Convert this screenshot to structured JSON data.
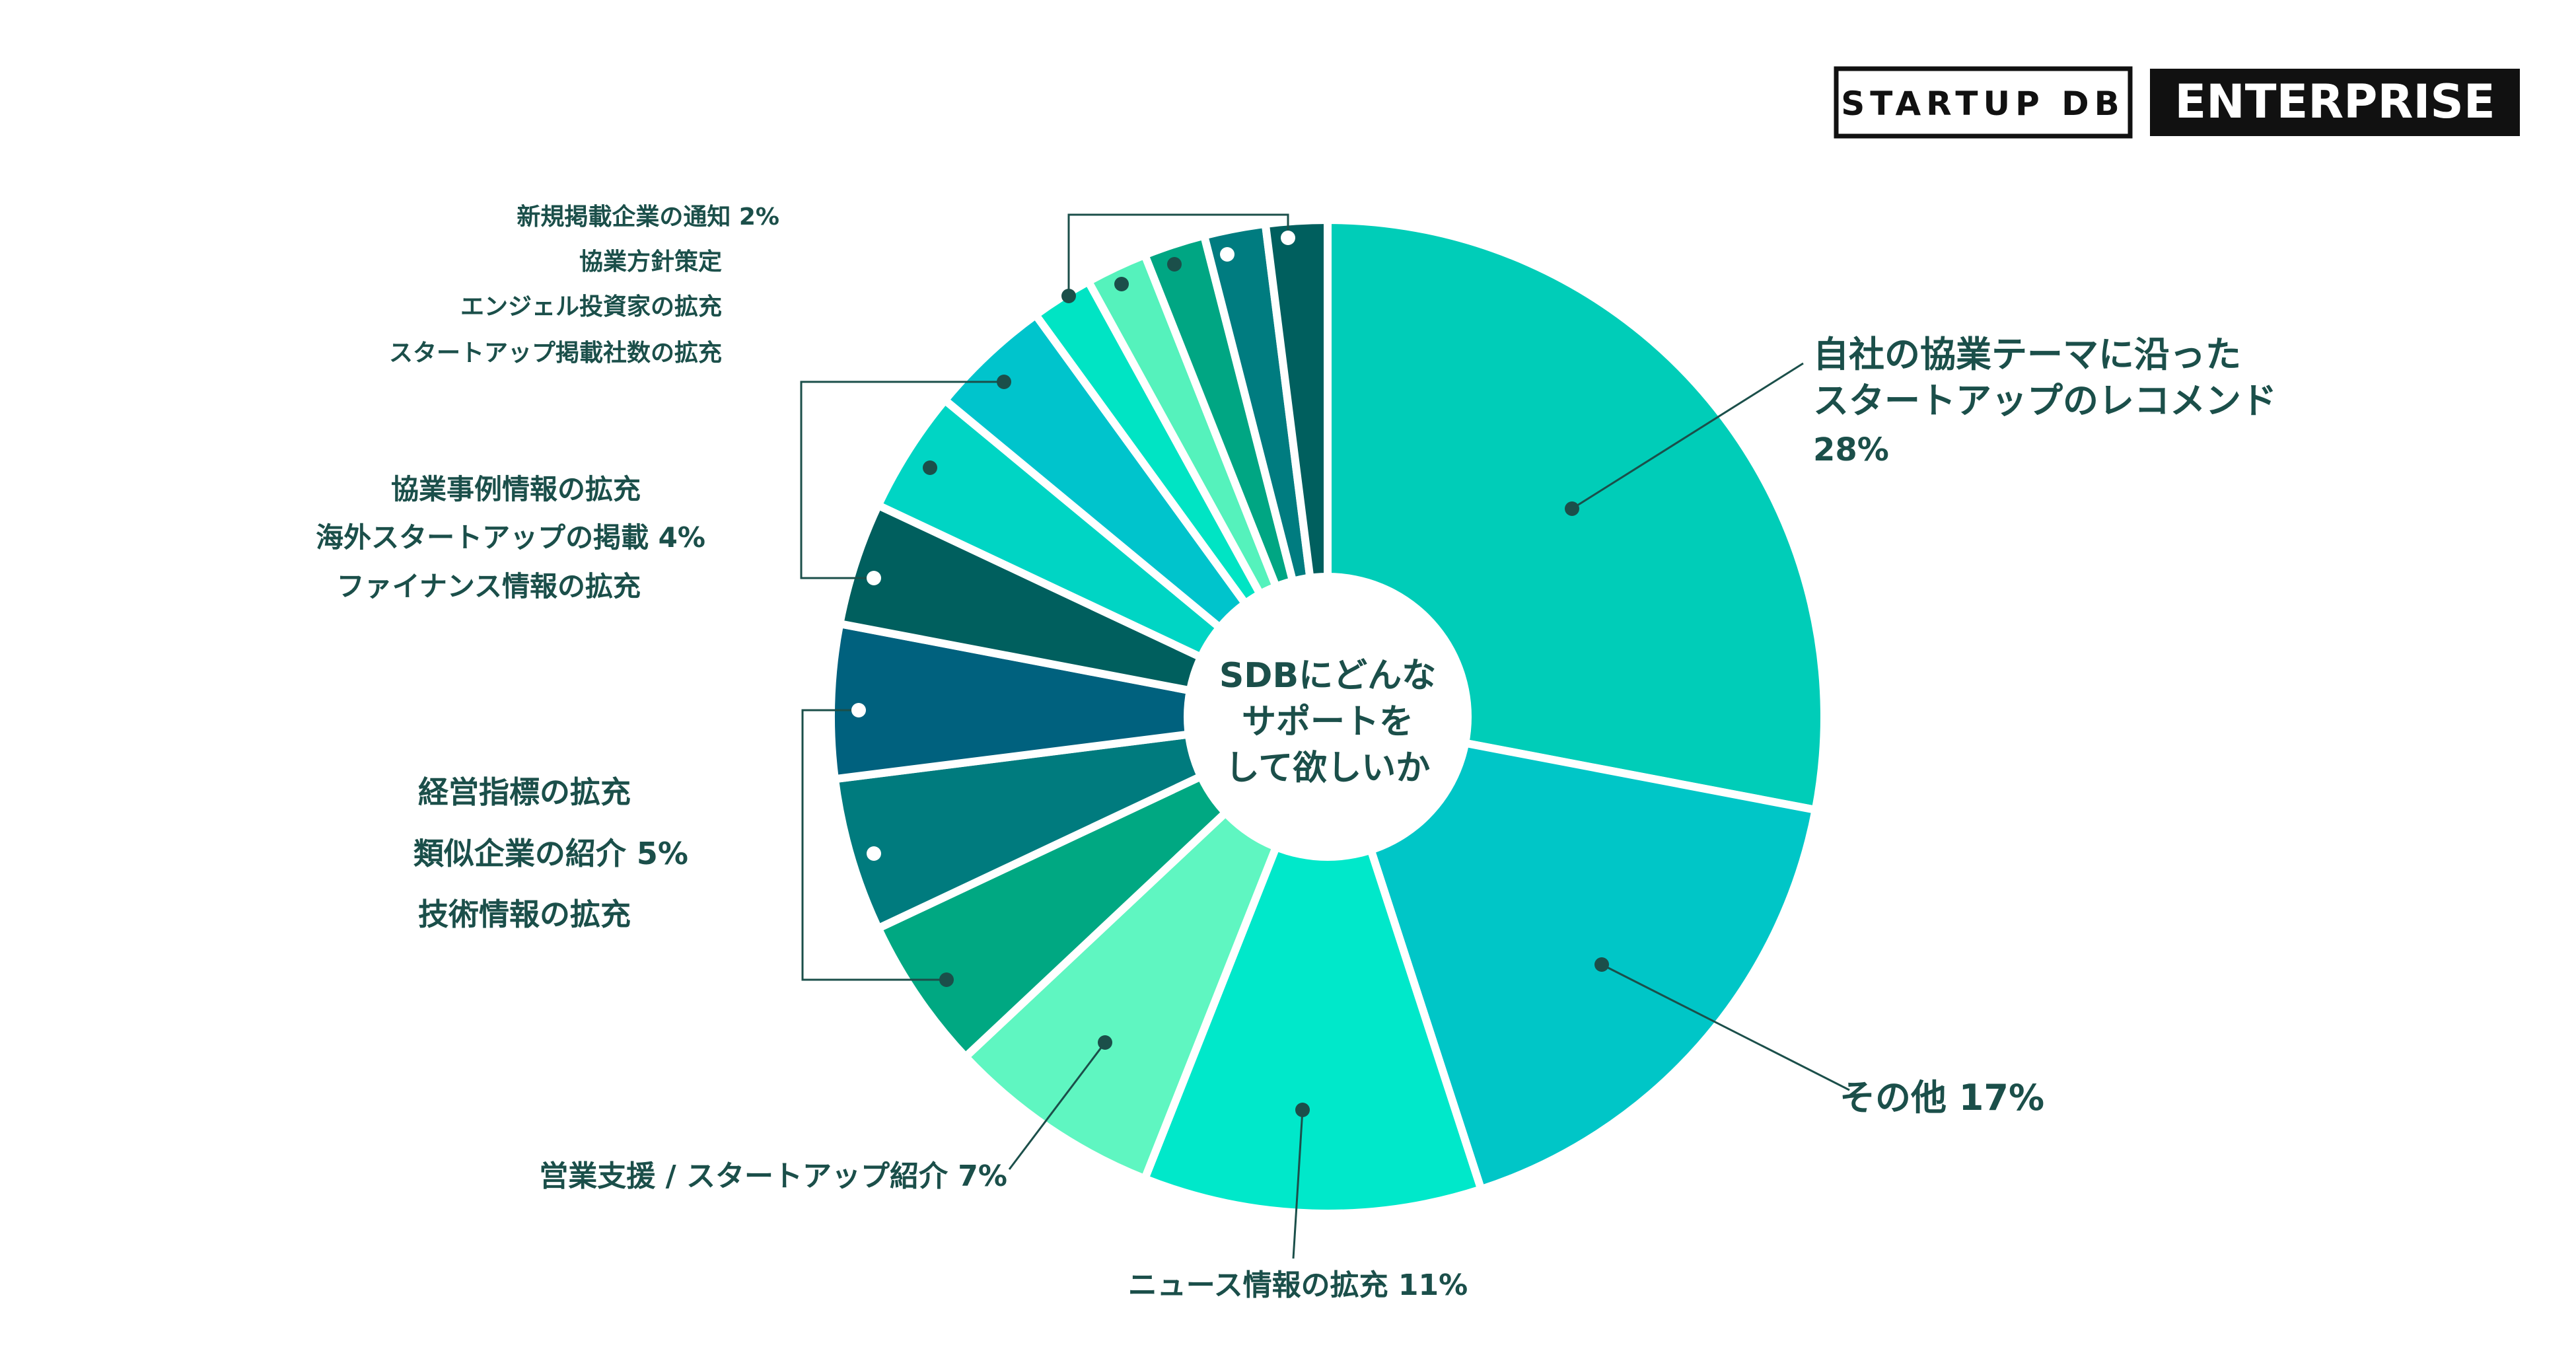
{
  "brand": {
    "primary": "STARTUP DB",
    "secondary": "ENTERPRISE"
  },
  "chart_data": {
    "type": "pie",
    "center_title": [
      "SDBにどんな",
      "サポートを",
      "して欲しいか"
    ],
    "slices": [
      {
        "name": "自社の協業テーマに沿ったスタートアップのレコメンド",
        "value": 28,
        "color": "#00CDB8"
      },
      {
        "name": "その他",
        "value": 17,
        "color": "#00C6C7"
      },
      {
        "name": "ニュース情報の拡充",
        "value": 11,
        "color": "#00E8CA"
      },
      {
        "name": "営業支援 / スタートアップ紹介",
        "value": 7,
        "color": "#5FF6C1"
      },
      {
        "name": "技術情報の拡充",
        "value": 5,
        "color": "#00A882"
      },
      {
        "name": "類似企業の紹介",
        "value": 5,
        "color": "#007B7E"
      },
      {
        "name": "経営指標の拡充",
        "value": 5,
        "color": "#00617E"
      },
      {
        "name": "ファイナンス情報の拡充",
        "value": 4,
        "color": "#005F5E"
      },
      {
        "name": "海外スタートアップの掲載",
        "value": 4,
        "color": "#00D5C4"
      },
      {
        "name": "協業事例情報の拡充",
        "value": 4,
        "color": "#00C4CC"
      },
      {
        "name": "スタートアップ掲載社数の拡充",
        "value": 2,
        "color": "#00E4C4"
      },
      {
        "name": "エンジェル投資家の拡充",
        "value": 2,
        "color": "#55F2BC"
      },
      {
        "name": "協業方針策定",
        "value": 2,
        "color": "#00A683"
      },
      {
        "name": "新規掲載企業の通知",
        "value": 2,
        "color": "#007C80"
      },
      {
        "name": "",
        "value": 2,
        "color": "#005F5E"
      }
    ],
    "labels": {
      "top_right": [
        "自社の協業テーマに沿った",
        "スタートアップのレコメンド",
        "28%"
      ],
      "other": "その他  17%",
      "news": "ニュース情報の拡充 11%",
      "sales": "営業支援 / スタートアップ紹介  7%",
      "group5": [
        "経営指標の拡充",
        "類似企業の紹介  5%",
        "技術情報の拡充"
      ],
      "group4": [
        "協業事例情報の拡充",
        "海外スタートアップの掲載  4%",
        "ファイナンス情報の拡充"
      ],
      "group2": [
        "新規掲載企業の通知  2%",
        "協業方針策定",
        "エンジェル投資家の拡充",
        "スタートアップ掲載社数の拡充"
      ]
    }
  }
}
